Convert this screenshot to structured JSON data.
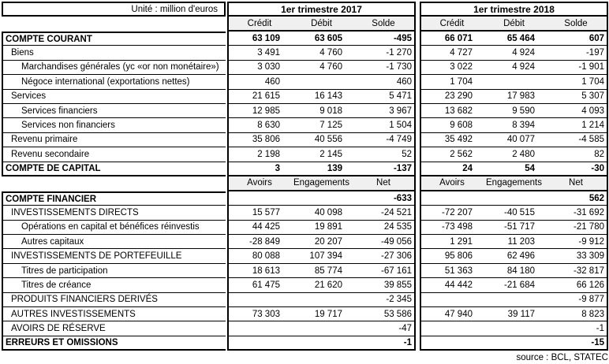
{
  "table": {
    "unit_label": "Unité : million d'euros",
    "source": "source : BCL, STATEC",
    "periods": [
      "1er trimestre 2017",
      "1er trimestre 2018"
    ],
    "flow_headers": [
      "Crédit",
      "Débit",
      "Solde"
    ],
    "position_headers": [
      "Avoirs",
      "Engagements",
      "Net"
    ],
    "rows_current": [
      {
        "label": "COMPTE COURANT",
        "indent": 0,
        "bold": true,
        "values": [
          "63 109",
          "63 605",
          "-495",
          "66 071",
          "65 464",
          "607"
        ]
      },
      {
        "label": "Biens",
        "indent": 1,
        "bold": false,
        "values": [
          "3 491",
          "4 760",
          "-1 270",
          "4 727",
          "4 924",
          "-197"
        ]
      },
      {
        "label": "Marchandises générales (yc «or non monétaire»)",
        "indent": 2,
        "bold": false,
        "values": [
          "3 030",
          "4 760",
          "-1 730",
          "3 022",
          "4 924",
          "-1 901"
        ]
      },
      {
        "label": "Négoce international (exportations nettes)",
        "indent": 2,
        "bold": false,
        "values": [
          "460",
          "",
          "460",
          "1 704",
          "",
          "1 704"
        ]
      },
      {
        "label": "Services",
        "indent": 1,
        "bold": false,
        "values": [
          "21 615",
          "16 143",
          "5 471",
          "23 290",
          "17 983",
          "5 307"
        ]
      },
      {
        "label": "Services financiers",
        "indent": 2,
        "bold": false,
        "values": [
          "12 985",
          "9 018",
          "3 967",
          "13 682",
          "9 590",
          "4 093"
        ]
      },
      {
        "label": "Services non financiers",
        "indent": 2,
        "bold": false,
        "values": [
          "8 630",
          "7 125",
          "1 504",
          "9 608",
          "8 394",
          "1 214"
        ]
      },
      {
        "label": "Revenu primaire",
        "indent": 1,
        "bold": false,
        "values": [
          "35 806",
          "40 556",
          "-4 749",
          "35 492",
          "40 077",
          "-4 585"
        ]
      },
      {
        "label": "Revenu secondaire",
        "indent": 1,
        "bold": false,
        "values": [
          "2 198",
          "2 145",
          "52",
          "2 562",
          "2 480",
          "82"
        ]
      },
      {
        "label": "COMPTE DE CAPITAL",
        "indent": 0,
        "bold": true,
        "values": [
          "3",
          "139",
          "-137",
          "24",
          "54",
          "-30"
        ]
      }
    ],
    "rows_financial": [
      {
        "label": "COMPTE FINANCIER",
        "indent": 0,
        "bold": true,
        "values": [
          "",
          "",
          "-633",
          "",
          "",
          "562"
        ]
      },
      {
        "label": "INVESTISSEMENTS DIRECTS",
        "indent": 1,
        "bold": false,
        "values": [
          "15 577",
          "40 098",
          "-24 521",
          "-72 207",
          "-40 515",
          "-31 692"
        ]
      },
      {
        "label": "Opérations en capital et bénéfices réinvestis",
        "indent": 2,
        "bold": false,
        "values": [
          "44 425",
          "19 891",
          "24 535",
          "-73 498",
          "-51 717",
          "-21 780"
        ]
      },
      {
        "label": "Autres capitaux",
        "indent": 2,
        "bold": false,
        "values": [
          "-28 849",
          "20 207",
          "-49 056",
          "1 291",
          "11 203",
          "-9 912"
        ]
      },
      {
        "label": "INVESTISSEMENTS DE PORTEFEUILLE",
        "indent": 1,
        "bold": false,
        "values": [
          "80 088",
          "107 394",
          "-27 306",
          "95 806",
          "62 496",
          "33 309"
        ]
      },
      {
        "label": "Titres de participation",
        "indent": 2,
        "bold": false,
        "values": [
          "18 613",
          "85 774",
          "-67 161",
          "51 363",
          "84 180",
          "-32 817"
        ]
      },
      {
        "label": "Titres de créance",
        "indent": 2,
        "bold": false,
        "values": [
          "61 475",
          "21 620",
          "39 855",
          "44 442",
          "-21 684",
          "66 126"
        ]
      },
      {
        "label": "PRODUITS FINANCIERS DERIVÉS",
        "indent": 1,
        "bold": false,
        "values": [
          "",
          "",
          "-2 345",
          "",
          "",
          "-9 877"
        ]
      },
      {
        "label": "AUTRES INVESTISSEMENTS",
        "indent": 1,
        "bold": false,
        "values": [
          "73 303",
          "19 717",
          "53 586",
          "47 940",
          "39 117",
          "8 823"
        ]
      },
      {
        "label": "AVOIRS DE RÉSERVE",
        "indent": 1,
        "bold": false,
        "values": [
          "",
          "",
          "-47",
          "",
          "",
          "-1"
        ]
      },
      {
        "label": "ERREURS ET OMISSIONS",
        "indent": 0,
        "bold": true,
        "values": [
          "",
          "",
          "-1",
          "",
          "",
          "-15"
        ]
      }
    ]
  }
}
